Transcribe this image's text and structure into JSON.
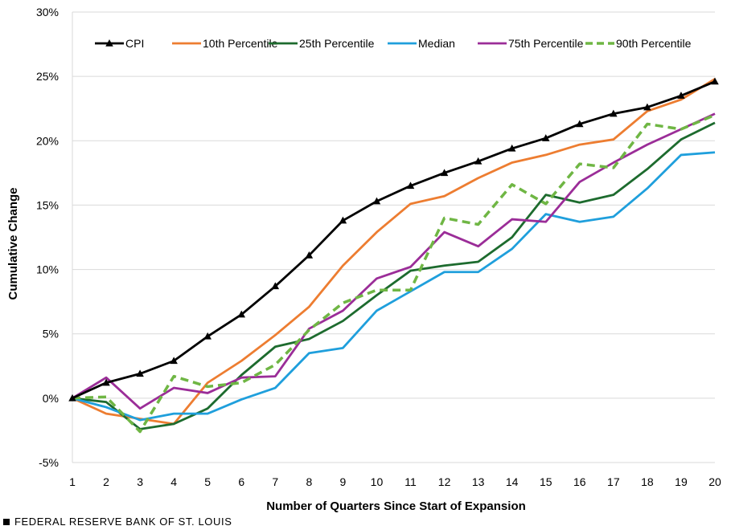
{
  "chart_data": {
    "type": "line",
    "title": "",
    "xlabel": "Number of Quarters Since Start of Expansion",
    "ylabel": "Cumulative Change",
    "x": [
      1,
      2,
      3,
      4,
      5,
      6,
      7,
      8,
      9,
      10,
      11,
      12,
      13,
      14,
      15,
      16,
      17,
      18,
      19,
      20
    ],
    "ylim": [
      -5,
      30
    ],
    "yticks": [
      -5,
      0,
      5,
      10,
      15,
      20,
      25,
      30
    ],
    "ytick_labels": [
      "-5%",
      "0%",
      "5%",
      "10%",
      "15%",
      "20%",
      "25%",
      "30%"
    ],
    "grid": "horizontal",
    "legend_position": "top",
    "series": [
      {
        "name": "CPI",
        "color": "#000000",
        "style": "solid",
        "marker": "triangle",
        "values": [
          0,
          1.2,
          1.9,
          2.9,
          4.8,
          6.5,
          8.7,
          11.1,
          13.8,
          15.3,
          16.5,
          17.5,
          18.4,
          19.4,
          20.2,
          21.3,
          22.1,
          22.6,
          23.5,
          24.6
        ]
      },
      {
        "name": "10th Percentile",
        "color": "#ed7d31",
        "style": "solid",
        "marker": "none",
        "values": [
          0,
          -1.2,
          -1.6,
          -2.0,
          1.2,
          2.9,
          4.9,
          7.1,
          10.3,
          12.9,
          15.1,
          15.7,
          17.1,
          18.3,
          18.9,
          19.7,
          20.1,
          22.3,
          23.2,
          24.8
        ]
      },
      {
        "name": "25th Percentile",
        "color": "#1d6b2e",
        "style": "solid",
        "marker": "none",
        "values": [
          0,
          -0.3,
          -2.4,
          -2.0,
          -0.8,
          1.8,
          4.0,
          4.6,
          6.0,
          8.0,
          9.9,
          10.3,
          10.6,
          12.5,
          15.8,
          15.2,
          15.8,
          17.8,
          20.1,
          21.4
        ]
      },
      {
        "name": "Median",
        "color": "#1f9fdc",
        "style": "solid",
        "marker": "none",
        "values": [
          0,
          -0.7,
          -1.7,
          -1.2,
          -1.2,
          -0.1,
          0.8,
          3.5,
          3.9,
          6.8,
          8.3,
          9.8,
          9.8,
          11.6,
          14.3,
          13.7,
          14.1,
          16.3,
          18.9,
          19.1
        ]
      },
      {
        "name": "75th Percentile",
        "color": "#9b2d98",
        "style": "solid",
        "marker": "none",
        "values": [
          0,
          1.6,
          -0.8,
          0.8,
          0.4,
          1.6,
          1.7,
          5.4,
          6.8,
          9.3,
          10.2,
          12.9,
          11.8,
          13.9,
          13.7,
          16.8,
          18.3,
          19.7,
          20.9,
          22.1
        ]
      },
      {
        "name": "90th Percentile",
        "color": "#6fb644",
        "style": "dashed",
        "marker": "none",
        "values": [
          0,
          0.1,
          -2.6,
          1.7,
          0.9,
          1.2,
          2.6,
          5.3,
          7.4,
          8.4,
          8.4,
          14.0,
          13.5,
          16.6,
          15.1,
          18.2,
          17.9,
          21.3,
          20.9,
          22.0
        ]
      }
    ]
  },
  "footer": {
    "source": "FEDERAL RESERVE BANK OF ST. LOUIS"
  }
}
